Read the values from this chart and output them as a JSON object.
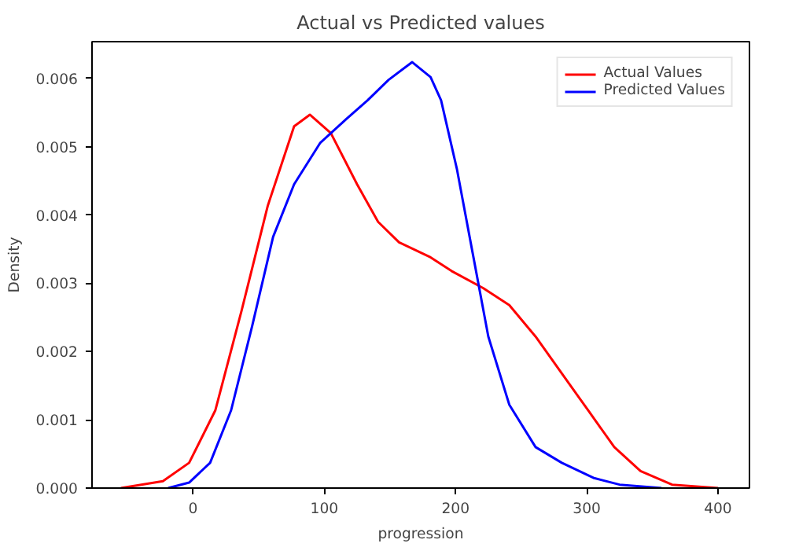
{
  "chart_data": {
    "type": "line",
    "title": "Actual vs Predicted values",
    "xlabel": "progression",
    "ylabel": "Density",
    "xlim": [
      -77,
      424
    ],
    "ylim": [
      0,
      0.00654
    ],
    "xticks": [
      0,
      100,
      200,
      300,
      400
    ],
    "yticks": [
      {
        "value": 0,
        "label": "0.000"
      },
      {
        "value": 0.001,
        "label": "0.001"
      },
      {
        "value": 0.002,
        "label": "0.002"
      },
      {
        "value": 0.003,
        "label": "0.003"
      },
      {
        "value": 0.004,
        "label": "0.004"
      },
      {
        "value": 0.005,
        "label": "0.005"
      },
      {
        "value": 0.006,
        "label": "0.006"
      }
    ],
    "grid": false,
    "legend": "top right",
    "marker": "none",
    "line_style": "solid",
    "series": [
      {
        "name": "Actual Values",
        "color": "#ff0000",
        "x": [
          -55,
          -23,
          -3,
          17,
          37,
          57,
          77,
          89,
          105,
          125,
          141,
          157,
          181,
          197,
          221,
          241,
          261,
          281,
          301,
          321,
          341,
          365,
          400
        ],
        "values": [
          0,
          0.0001,
          0.00037,
          0.00114,
          0.0026,
          0.00414,
          0.0053,
          0.00547,
          0.0052,
          0.00445,
          0.0039,
          0.0036,
          0.00338,
          0.00318,
          0.00293,
          0.00268,
          0.00222,
          0.00168,
          0.00114,
          0.0006,
          0.00025,
          5e-05,
          0
        ]
      },
      {
        "name": "Predicted Values",
        "color": "#0000ff",
        "x": [
          -19,
          -3,
          13,
          29,
          45,
          61,
          77,
          97,
          117,
          133,
          149,
          167,
          181,
          189,
          201,
          213,
          225,
          241,
          261,
          281,
          305,
          325,
          357
        ],
        "values": [
          0,
          8e-05,
          0.00037,
          0.00114,
          0.00237,
          0.00368,
          0.00445,
          0.00506,
          0.00541,
          0.00568,
          0.00598,
          0.00624,
          0.00602,
          0.00568,
          0.00468,
          0.00345,
          0.00222,
          0.00122,
          0.0006,
          0.00037,
          0.00015,
          5e-05,
          0
        ]
      }
    ]
  }
}
